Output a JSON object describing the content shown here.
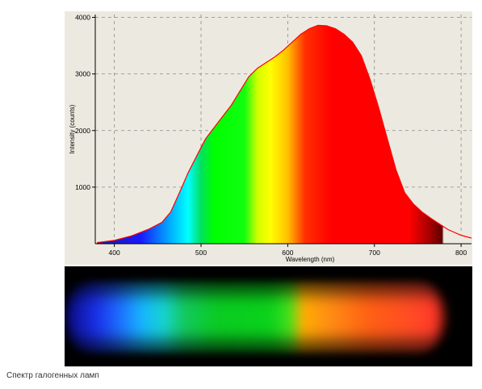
{
  "chart_data": {
    "type": "area",
    "xlabel": "Wavelength (nm)",
    "ylabel": "Intensity (counts)",
    "xlim": [
      378,
      812
    ],
    "ylim": [
      0,
      4050
    ],
    "x_ticks": [
      400,
      500,
      600,
      700,
      800
    ],
    "y_ticks": [
      1000,
      2000,
      3000,
      4000
    ],
    "grid": true,
    "fill": "visible-spectrum colors under the curve",
    "curve_color": "#ff0000",
    "series": [
      {
        "x": [
          380,
          400,
          420,
          440,
          455,
          465,
          475,
          485,
          495,
          505,
          515,
          525,
          535,
          545,
          555,
          565,
          575,
          585,
          595,
          605,
          615,
          625,
          635,
          645,
          655,
          665,
          675,
          685,
          695,
          705,
          715,
          725,
          735,
          745,
          755,
          765,
          775,
          785,
          800,
          812
        ],
        "values": [
          20,
          60,
          140,
          260,
          380,
          560,
          900,
          1250,
          1550,
          1850,
          2050,
          2250,
          2450,
          2700,
          2950,
          3100,
          3200,
          3300,
          3420,
          3560,
          3700,
          3800,
          3860,
          3850,
          3800,
          3700,
          3560,
          3320,
          2900,
          2400,
          1850,
          1300,
          900,
          700,
          560,
          450,
          350,
          250,
          150,
          100
        ]
      }
    ]
  },
  "strip": {
    "label": "spectrum strip"
  },
  "caption": "Спектр галогенных ламп"
}
